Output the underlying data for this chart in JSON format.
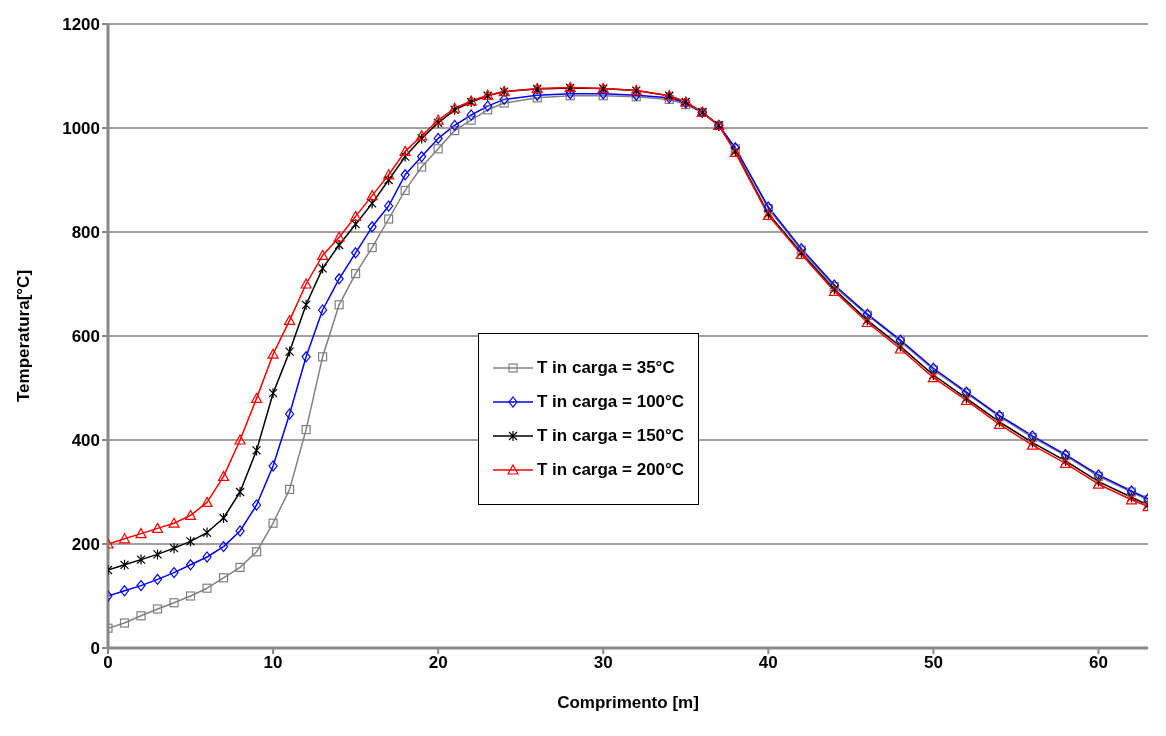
{
  "chart_data": {
    "type": "line",
    "xlabel": "Comprimento [m]",
    "ylabel": "Temperatura[°C]",
    "xlim": [
      0,
      63
    ],
    "xticks": [
      0,
      10,
      20,
      30,
      40,
      50,
      60
    ],
    "ylim": [
      0,
      1200
    ],
    "yticks": [
      0,
      200,
      400,
      600,
      800,
      1000,
      1200
    ],
    "grid": "y",
    "legend": "center",
    "line_style": "solid",
    "x": [
      0,
      1,
      2,
      3,
      4,
      5,
      6,
      7,
      8,
      9,
      10,
      11,
      12,
      13,
      14,
      15,
      16,
      17,
      18,
      19,
      20,
      21,
      22,
      23,
      24,
      26,
      28,
      30,
      32,
      34,
      35,
      36,
      37,
      38,
      40,
      42,
      44,
      46,
      48,
      50,
      52,
      54,
      56,
      58,
      60,
      62,
      63
    ],
    "series": [
      {
        "name": "T in carga = 35°C",
        "color": "#808080",
        "marker": "square",
        "values": [
          38,
          48,
          62,
          75,
          87,
          100,
          115,
          135,
          155,
          185,
          240,
          305,
          420,
          560,
          660,
          720,
          770,
          825,
          880,
          925,
          960,
          995,
          1015,
          1035,
          1048,
          1058,
          1062,
          1062,
          1060,
          1055,
          1045,
          1030,
          1005,
          960,
          845,
          765,
          695,
          640,
          590,
          535,
          490,
          445,
          405,
          370,
          330,
          300,
          285
        ]
      },
      {
        "name": "T in carga = 100°C",
        "color": "#0000ff",
        "marker": "diamond",
        "values": [
          100,
          110,
          120,
          132,
          145,
          160,
          175,
          195,
          225,
          275,
          350,
          450,
          560,
          650,
          710,
          760,
          810,
          850,
          910,
          945,
          980,
          1005,
          1025,
          1042,
          1055,
          1063,
          1066,
          1066,
          1063,
          1058,
          1048,
          1030,
          1005,
          962,
          848,
          768,
          698,
          642,
          592,
          538,
          492,
          447,
          408,
          372,
          333,
          302,
          287
        ]
      },
      {
        "name": "T in carga = 150°C",
        "color": "#000000",
        "marker": "cross",
        "values": [
          150,
          160,
          170,
          180,
          192,
          205,
          222,
          250,
          300,
          380,
          490,
          570,
          660,
          730,
          775,
          815,
          855,
          900,
          945,
          980,
          1010,
          1035,
          1050,
          1062,
          1070,
          1075,
          1077,
          1076,
          1072,
          1062,
          1050,
          1030,
          1005,
          955,
          835,
          760,
          690,
          630,
          580,
          525,
          480,
          435,
          395,
          360,
          320,
          290,
          275
        ]
      },
      {
        "name": "T in carga = 200°C",
        "color": "#ff0000",
        "marker": "triangle",
        "values": [
          200,
          210,
          220,
          230,
          240,
          255,
          280,
          330,
          400,
          480,
          565,
          630,
          700,
          755,
          790,
          830,
          870,
          910,
          955,
          985,
          1015,
          1038,
          1052,
          1063,
          1070,
          1076,
          1078,
          1076,
          1072,
          1062,
          1050,
          1030,
          1005,
          953,
          832,
          757,
          686,
          626,
          575,
          520,
          476,
          430,
          390,
          355,
          315,
          285,
          272
        ]
      }
    ]
  }
}
